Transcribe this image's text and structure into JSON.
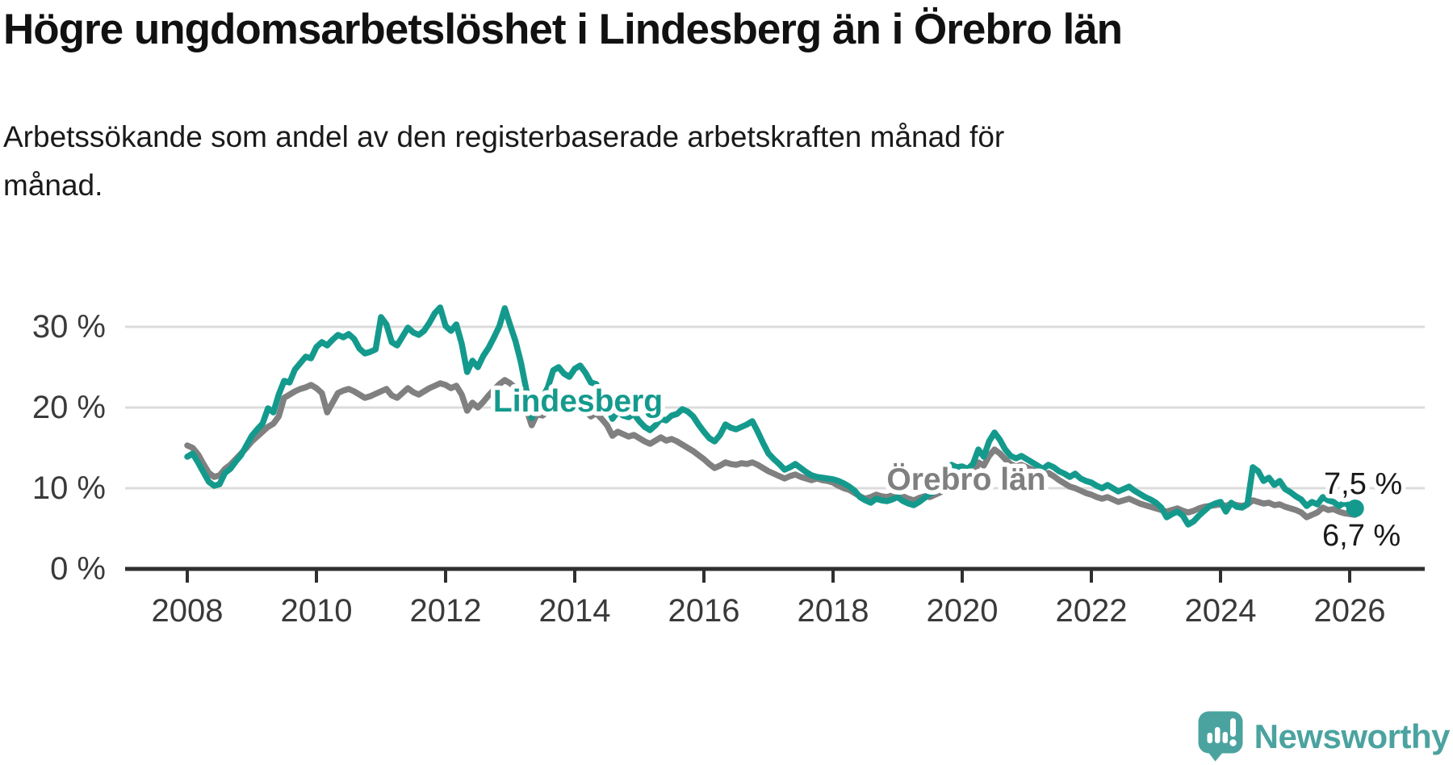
{
  "header": {
    "title": "Högre ungdomsarbetslöshet i Lindesberg än i Örebro län",
    "subtitle": "Arbetssökande som andel av den registerbaserade arbetskraften månad för månad."
  },
  "chart_data": {
    "type": "line",
    "x_unit": "month",
    "x_start": "2008-01",
    "x_end": "2026-02",
    "x_ticks": [
      "2008",
      "2010",
      "2012",
      "2014",
      "2016",
      "2018",
      "2020",
      "2022",
      "2024",
      "2026"
    ],
    "y_ticks": [
      {
        "value": 0,
        "label": "0 %"
      },
      {
        "value": 10,
        "label": "10 %"
      },
      {
        "value": 20,
        "label": "20 %"
      },
      {
        "value": 30,
        "label": "30 %"
      }
    ],
    "ylim": [
      0,
      34
    ],
    "grid": "horizontal",
    "legend_position": "inline-labels",
    "series": [
      {
        "name": "Lindesberg",
        "color": "#149a8d",
        "end_label": "7,5 %",
        "end_value": 7.5,
        "end_dot": true,
        "values": [
          13.9,
          14.3,
          13.2,
          12.0,
          10.8,
          10.3,
          10.5,
          11.9,
          12.4,
          13.3,
          14.1,
          15.3,
          16.5,
          17.3,
          18.0,
          19.9,
          19.4,
          21.6,
          23.3,
          23.1,
          24.7,
          25.5,
          26.3,
          26.1,
          27.5,
          28.1,
          27.7,
          28.4,
          29.0,
          28.7,
          29.1,
          28.5,
          27.3,
          26.7,
          26.9,
          27.2,
          31.2,
          30.3,
          28.1,
          27.7,
          28.8,
          29.9,
          29.3,
          29.0,
          29.5,
          30.5,
          31.7,
          32.4,
          30.1,
          29.5,
          30.3,
          27.9,
          24.4,
          25.8,
          25.0,
          26.4,
          27.4,
          28.7,
          30.1,
          32.3,
          30.2,
          28.2,
          25.6,
          22.2,
          18.7,
          20.6,
          21.2,
          22.5,
          24.6,
          25.0,
          24.2,
          23.8,
          24.8,
          25.2,
          24.3,
          23.1,
          22.9,
          21.5,
          20.3,
          18.6,
          19.5,
          19.0,
          18.8,
          19.2,
          18.3,
          17.6,
          17.2,
          17.8,
          18.6,
          18.4,
          19.0,
          19.2,
          19.8,
          19.5,
          18.9,
          17.9,
          17.0,
          16.2,
          15.8,
          16.6,
          17.9,
          17.5,
          17.3,
          17.6,
          17.9,
          18.3,
          17.0,
          15.6,
          14.3,
          13.6,
          13.0,
          12.3,
          12.6,
          13.0,
          12.5,
          12.0,
          11.6,
          11.4,
          11.3,
          11.2,
          11.1,
          10.9,
          10.6,
          10.2,
          9.7,
          8.9,
          8.5,
          8.2,
          8.7,
          8.5,
          8.4,
          8.6,
          8.9,
          8.4,
          8.1,
          7.9,
          8.3,
          8.8,
          9.3,
          9.6,
          10.2,
          12.4,
          12.9,
          12.6,
          12.7,
          12.4,
          13.0,
          14.8,
          13.9,
          15.8,
          16.9,
          16.0,
          14.8,
          14.0,
          13.7,
          14.0,
          13.6,
          13.2,
          12.8,
          12.4,
          12.9,
          12.6,
          12.1,
          11.8,
          11.4,
          11.8,
          11.2,
          10.9,
          10.7,
          10.3,
          10.0,
          10.4,
          10.0,
          9.6,
          9.9,
          10.2,
          9.7,
          9.3,
          8.9,
          8.6,
          8.2,
          7.6,
          6.4,
          6.8,
          7.1,
          6.6,
          5.5,
          5.9,
          6.6,
          7.2,
          7.8,
          8.1,
          8.3,
          7.1,
          8.2,
          7.7,
          7.6,
          8.0,
          12.6,
          12.1,
          10.9,
          11.3,
          10.4,
          10.9,
          9.9,
          9.5,
          9.0,
          8.6,
          7.8,
          8.3,
          8.0,
          8.9,
          8.5,
          8.3,
          7.8,
          8.2,
          7.8,
          7.5
        ]
      },
      {
        "name": "Örebro län",
        "color": "#808080",
        "end_label": "6,7 %",
        "end_value": 6.7,
        "end_dot": false,
        "values": [
          15.3,
          15.0,
          14.2,
          13.0,
          11.9,
          11.4,
          11.6,
          12.4,
          12.9,
          13.6,
          14.3,
          15.0,
          15.8,
          16.4,
          17.0,
          17.6,
          18.0,
          18.9,
          21.2,
          21.6,
          22.0,
          22.3,
          22.5,
          22.8,
          22.4,
          21.8,
          19.4,
          20.6,
          21.8,
          22.1,
          22.3,
          22.0,
          21.6,
          21.2,
          21.4,
          21.7,
          22.0,
          22.3,
          21.5,
          21.2,
          21.8,
          22.4,
          21.9,
          21.6,
          22.0,
          22.4,
          22.7,
          23.0,
          22.8,
          22.4,
          22.7,
          21.6,
          19.6,
          20.6,
          20.0,
          20.7,
          21.5,
          22.2,
          22.9,
          23.4,
          23.0,
          22.4,
          21.5,
          19.8,
          17.8,
          19.2,
          19.0,
          19.5,
          20.1,
          20.4,
          20.0,
          19.7,
          19.9,
          20.2,
          19.6,
          18.9,
          19.3,
          18.6,
          17.8,
          16.5,
          17.0,
          16.7,
          16.4,
          16.6,
          16.2,
          15.8,
          15.5,
          15.9,
          16.3,
          15.9,
          16.1,
          15.8,
          15.4,
          15.0,
          14.6,
          14.1,
          13.6,
          13.0,
          12.5,
          12.8,
          13.2,
          13.0,
          12.9,
          13.1,
          13.0,
          13.2,
          12.9,
          12.5,
          12.1,
          11.8,
          11.5,
          11.2,
          11.5,
          11.7,
          11.4,
          11.2,
          11.0,
          11.2,
          11.0,
          10.9,
          10.7,
          10.3,
          10.0,
          9.8,
          9.4,
          9.0,
          8.7,
          8.9,
          9.2,
          9.0,
          8.9,
          9.1,
          9.3,
          9.0,
          8.7,
          8.5,
          8.8,
          9.0,
          8.9,
          9.2,
          9.5,
          10.0,
          10.8,
          10.5,
          10.9,
          10.7,
          11.3,
          13.2,
          12.8,
          14.0,
          14.8,
          14.3,
          13.6,
          13.0,
          12.7,
          12.9,
          12.6,
          12.3,
          11.9,
          11.6,
          11.9,
          11.5,
          11.0,
          10.6,
          10.2,
          10.0,
          9.7,
          9.4,
          9.2,
          8.9,
          8.7,
          8.9,
          8.6,
          8.3,
          8.5,
          8.7,
          8.4,
          8.1,
          7.9,
          7.7,
          7.5,
          7.3,
          7.1,
          7.3,
          7.5,
          7.2,
          7.0,
          7.2,
          7.5,
          7.7,
          7.8,
          7.9,
          8.0,
          7.8,
          8.1,
          7.9,
          7.8,
          8.0,
          8.5,
          8.3,
          8.1,
          8.2,
          7.9,
          8.0,
          7.7,
          7.5,
          7.3,
          7.0,
          6.4,
          6.7,
          7.0,
          7.6,
          7.3,
          7.4,
          7.1,
          6.9,
          6.8,
          6.7
        ]
      }
    ]
  },
  "footer": {
    "brand_text": "Newsworthy",
    "brand_color": "#4ba3a0"
  }
}
